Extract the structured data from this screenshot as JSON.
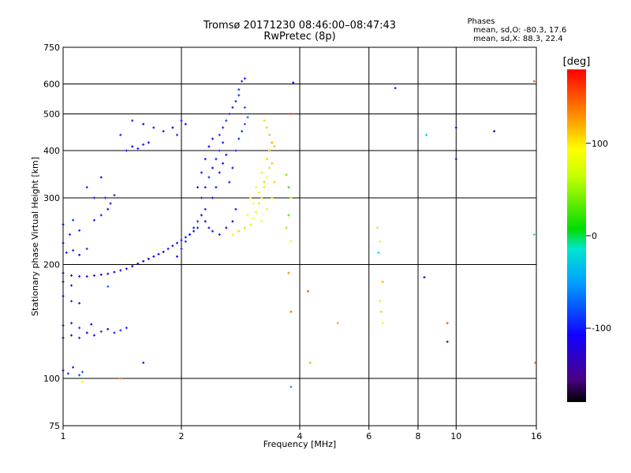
{
  "header": {
    "title": "Tromsø 20171230 08:46:00–08:47:43",
    "subtitle": "RwPretec (8p)"
  },
  "stats": {
    "heading": "Phases",
    "line_o": "mean, sd,O: -80.3, 17.6",
    "line_x": "mean, sd,X:  88.3, 22.4"
  },
  "chart_data": {
    "type": "scatter",
    "xlabel": "Frequency [MHz]",
    "ylabel": "Stationary phase Virtual Height [km]",
    "xscale": "log",
    "yscale": "log",
    "xlim": [
      1,
      16
    ],
    "ylim": [
      75,
      750
    ],
    "xticks": [
      1,
      2,
      4,
      6,
      8,
      10,
      16
    ],
    "yticks": [
      75,
      100,
      200,
      300,
      400,
      500,
      600,
      750
    ],
    "grid": true,
    "colorbar": {
      "label": "[deg]",
      "range": [
        -180,
        180
      ],
      "ticks": [
        100,
        0,
        -100
      ],
      "colormap": "rainbow"
    },
    "series": [
      {
        "points": [
          [
            1.0,
            105,
            -110
          ],
          [
            1.03,
            103,
            -90
          ],
          [
            1.06,
            107,
            -100
          ],
          [
            1.1,
            102,
            -85
          ],
          [
            1.12,
            104,
            -70
          ],
          [
            1.0,
            128,
            -115
          ],
          [
            1.05,
            130,
            -105
          ],
          [
            1.1,
            128,
            -95
          ],
          [
            1.15,
            132,
            -110
          ],
          [
            1.2,
            130,
            -100
          ],
          [
            1.25,
            133,
            -90
          ],
          [
            1.3,
            135,
            -105
          ],
          [
            1.35,
            132,
            -95
          ],
          [
            1.4,
            134,
            -85
          ],
          [
            1.45,
            136,
            -100
          ],
          [
            1.0,
            138,
            -110
          ],
          [
            1.05,
            140,
            -100
          ],
          [
            1.1,
            136,
            -95
          ],
          [
            1.18,
            139,
            -105
          ],
          [
            1.0,
            165,
            -100
          ],
          [
            1.05,
            160,
            -95
          ],
          [
            1.1,
            158,
            -105
          ],
          [
            1.0,
            180,
            -110
          ],
          [
            1.05,
            176,
            -100
          ],
          [
            1.0,
            190,
            -105
          ],
          [
            1.05,
            187,
            -110
          ],
          [
            1.1,
            186,
            -115
          ],
          [
            1.15,
            186,
            -120
          ],
          [
            1.2,
            187,
            -118
          ],
          [
            1.25,
            188,
            -120
          ],
          [
            1.3,
            189,
            -115
          ],
          [
            1.35,
            191,
            -118
          ],
          [
            1.4,
            193,
            -120
          ],
          [
            1.45,
            195,
            -115
          ],
          [
            1.5,
            198,
            -110
          ],
          [
            1.55,
            201,
            -112
          ],
          [
            1.6,
            204,
            -110
          ],
          [
            1.65,
            207,
            -108
          ],
          [
            1.7,
            210,
            -105
          ],
          [
            1.75,
            213,
            -108
          ],
          [
            1.8,
            216,
            -105
          ],
          [
            1.85,
            220,
            -100
          ],
          [
            1.9,
            224,
            -103
          ],
          [
            1.95,
            228,
            -100
          ],
          [
            2.0,
            232,
            -98
          ],
          [
            2.05,
            236,
            -100
          ],
          [
            2.1,
            240,
            -95
          ],
          [
            2.15,
            245,
            -98
          ],
          [
            2.2,
            250,
            -95
          ],
          [
            1.02,
            215,
            -100
          ],
          [
            1.06,
            218,
            -95
          ],
          [
            1.1,
            212,
            -105
          ],
          [
            1.15,
            220,
            -90
          ],
          [
            1.0,
            228,
            -100
          ],
          [
            1.04,
            240,
            -95
          ],
          [
            1.1,
            246,
            -90
          ],
          [
            1.0,
            255,
            -100
          ],
          [
            1.06,
            262,
            -90
          ],
          [
            1.2,
            262,
            -100
          ],
          [
            1.25,
            270,
            -95
          ],
          [
            1.3,
            280,
            -100
          ],
          [
            1.32,
            290,
            -105
          ],
          [
            1.28,
            300,
            -100
          ],
          [
            1.35,
            305,
            -95
          ],
          [
            1.2,
            300,
            -100
          ],
          [
            1.15,
            320,
            -95
          ],
          [
            1.25,
            340,
            -105
          ],
          [
            1.45,
            400,
            -100
          ],
          [
            1.5,
            410,
            -105
          ],
          [
            1.55,
            405,
            -95
          ],
          [
            1.6,
            415,
            -100
          ],
          [
            1.65,
            420,
            -110
          ],
          [
            1.4,
            440,
            -100
          ],
          [
            1.5,
            480,
            -95
          ],
          [
            1.6,
            470,
            -105
          ],
          [
            1.7,
            460,
            -100
          ],
          [
            1.8,
            450,
            -95
          ],
          [
            1.9,
            460,
            -110
          ],
          [
            2.0,
            480,
            -100
          ],
          [
            1.95,
            440,
            -95
          ],
          [
            2.05,
            470,
            -105
          ],
          [
            1.95,
            210,
            -100
          ],
          [
            2.0,
            220,
            -95
          ],
          [
            2.05,
            230,
            -90
          ],
          [
            2.1,
            240,
            -100
          ],
          [
            2.15,
            250,
            -95
          ],
          [
            2.2,
            260,
            -90
          ],
          [
            2.25,
            270,
            -100
          ],
          [
            2.3,
            280,
            -95
          ],
          [
            2.25,
            300,
            -100
          ],
          [
            2.3,
            320,
            -95
          ],
          [
            2.35,
            340,
            -90
          ],
          [
            2.4,
            360,
            -100
          ],
          [
            2.45,
            380,
            -95
          ],
          [
            2.5,
            400,
            -90
          ],
          [
            2.55,
            420,
            -100
          ],
          [
            2.5,
            440,
            -95
          ],
          [
            2.55,
            460,
            -90
          ],
          [
            2.6,
            480,
            -85
          ],
          [
            2.65,
            500,
            -90
          ],
          [
            2.7,
            520,
            -95
          ],
          [
            2.75,
            540,
            -90
          ],
          [
            2.8,
            560,
            -85
          ],
          [
            2.8,
            580,
            -90
          ],
          [
            2.85,
            610,
            -95
          ],
          [
            2.9,
            620,
            -100
          ],
          [
            2.4,
            300,
            -110
          ],
          [
            2.45,
            320,
            -105
          ],
          [
            2.5,
            350,
            -100
          ],
          [
            2.55,
            370,
            -110
          ],
          [
            2.6,
            390,
            -105
          ],
          [
            2.3,
            260,
            -110
          ],
          [
            2.35,
            250,
            -100
          ],
          [
            2.4,
            245,
            -95
          ],
          [
            2.5,
            240,
            -100
          ],
          [
            2.6,
            250,
            -105
          ],
          [
            2.7,
            260,
            -110
          ],
          [
            2.75,
            280,
            -100
          ],
          [
            2.65,
            330,
            -95
          ],
          [
            2.7,
            360,
            -100
          ],
          [
            2.75,
            400,
            -95
          ],
          [
            2.8,
            430,
            -90
          ],
          [
            2.85,
            450,
            -85
          ],
          [
            2.9,
            470,
            -80
          ],
          [
            2.95,
            490,
            -75
          ],
          [
            2.9,
            520,
            -80
          ],
          [
            2.2,
            320,
            -100
          ],
          [
            2.25,
            350,
            -95
          ],
          [
            2.3,
            380,
            -100
          ],
          [
            2.35,
            410,
            -105
          ],
          [
            2.4,
            430,
            -100
          ],
          [
            2.7,
            240,
            100
          ],
          [
            2.8,
            245,
            110
          ],
          [
            2.9,
            250,
            105
          ],
          [
            3.0,
            255,
            100
          ],
          [
            3.05,
            265,
            95
          ],
          [
            3.1,
            275,
            100
          ],
          [
            3.15,
            290,
            105
          ],
          [
            3.2,
            300,
            110
          ],
          [
            3.25,
            320,
            105
          ],
          [
            3.3,
            340,
            100
          ],
          [
            3.35,
            360,
            105
          ],
          [
            3.3,
            380,
            110
          ],
          [
            3.35,
            400,
            120
          ],
          [
            3.4,
            420,
            125
          ],
          [
            3.35,
            440,
            115
          ],
          [
            3.3,
            460,
            110
          ],
          [
            3.25,
            480,
            105
          ],
          [
            3.0,
            300,
            100
          ],
          [
            3.1,
            320,
            95
          ],
          [
            3.2,
            350,
            100
          ],
          [
            2.95,
            270,
            90
          ],
          [
            3.05,
            290,
            95
          ],
          [
            3.15,
            310,
            100
          ],
          [
            3.25,
            330,
            110
          ],
          [
            3.2,
            260,
            95
          ],
          [
            3.3,
            280,
            100
          ],
          [
            3.4,
            300,
            105
          ],
          [
            3.45,
            330,
            110
          ],
          [
            3.4,
            370,
            115
          ],
          [
            3.45,
            410,
            120
          ],
          [
            3.7,
            345,
            40
          ],
          [
            3.75,
            320,
            20
          ],
          [
            3.8,
            300,
            60
          ],
          [
            3.75,
            270,
            30
          ],
          [
            3.7,
            250,
            50
          ],
          [
            3.8,
            230,
            80
          ],
          [
            3.75,
            190,
            130
          ],
          [
            3.8,
            150,
            140
          ],
          [
            3.8,
            95,
            -50
          ],
          [
            3.85,
            605,
            -110
          ],
          [
            3.8,
            500,
            160
          ],
          [
            4.2,
            170,
            150
          ],
          [
            4.25,
            110,
            40
          ],
          [
            5.0,
            140,
            120
          ],
          [
            6.3,
            250,
            60
          ],
          [
            6.4,
            230,
            80
          ],
          [
            6.35,
            215,
            -20
          ],
          [
            6.5,
            180,
            120
          ],
          [
            6.4,
            160,
            100
          ],
          [
            6.45,
            150,
            110
          ],
          [
            6.5,
            140,
            90
          ],
          [
            7.0,
            585,
            -100
          ],
          [
            8.3,
            185,
            -130
          ],
          [
            8.4,
            440,
            -30
          ],
          [
            9.5,
            140,
            150
          ],
          [
            9.5,
            125,
            -100
          ],
          [
            10.0,
            460,
            -110
          ],
          [
            10.0,
            380,
            -150
          ],
          [
            12.5,
            450,
            -120
          ],
          [
            15.8,
            610,
            150
          ],
          [
            15.8,
            240,
            -10
          ],
          [
            15.9,
            110,
            140
          ],
          [
            1.3,
            175,
            -70
          ],
          [
            1.6,
            110,
            -100
          ],
          [
            1.4,
            100,
            140
          ],
          [
            1.12,
            98,
            80
          ]
        ]
      }
    ]
  }
}
